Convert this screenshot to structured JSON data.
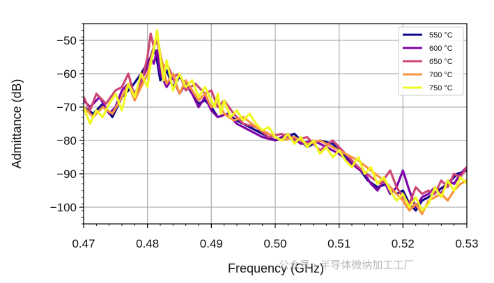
{
  "chart_data": {
    "type": "line",
    "xlabel": "Frequency (GHz)",
    "ylabel": "Admittance (dB)",
    "xlim": [
      0.47,
      0.53
    ],
    "ylim": [
      -105,
      -45
    ],
    "xticks": [
      0.47,
      0.48,
      0.49,
      0.5,
      0.51,
      0.52,
      0.53
    ],
    "xtick_labels": [
      "0.47",
      "0.48",
      "0.49",
      "0.50",
      "0.51",
      "0.52",
      "0.53"
    ],
    "yticks": [
      -100,
      -90,
      -80,
      -70,
      -60,
      -50
    ],
    "ytick_labels": [
      "−100",
      "−90",
      "−80",
      "−70",
      "−60",
      "−50"
    ],
    "grid": true,
    "legend_position": "top-right",
    "series": [
      {
        "name": "550 °C",
        "color": "#0d0887",
        "x": [
          0.47,
          0.4715,
          0.473,
          0.4745,
          0.476,
          0.4775,
          0.479,
          0.4805,
          0.481,
          0.4815,
          0.482,
          0.483,
          0.484,
          0.485,
          0.486,
          0.487,
          0.488,
          0.489,
          0.49,
          0.491,
          0.4925,
          0.494,
          0.496,
          0.498,
          0.5,
          0.5015,
          0.503,
          0.505,
          0.507,
          0.509,
          0.511,
          0.513,
          0.5145,
          0.516,
          0.5175,
          0.519,
          0.52,
          0.521,
          0.522,
          0.523,
          0.524,
          0.5255,
          0.527,
          0.5285,
          0.53
        ],
        "y": [
          -70,
          -72,
          -69,
          -73,
          -67,
          -64,
          -60,
          -55,
          -52,
          -56,
          -62,
          -59,
          -64,
          -61,
          -63,
          -66,
          -69,
          -68,
          -70,
          -73,
          -72,
          -74,
          -76,
          -78,
          -80,
          -79,
          -78,
          -82,
          -80,
          -81,
          -85,
          -88,
          -92,
          -94,
          -93,
          -96,
          -95,
          -99,
          -101,
          -98,
          -97,
          -95,
          -93,
          -90,
          -89
        ]
      },
      {
        "name": "600 °C",
        "color": "#7e03a8",
        "x": [
          0.47,
          0.471,
          0.4725,
          0.474,
          0.475,
          0.476,
          0.477,
          0.478,
          0.479,
          0.48,
          0.4805,
          0.481,
          0.4815,
          0.482,
          0.483,
          0.484,
          0.485,
          0.486,
          0.487,
          0.488,
          0.489,
          0.49,
          0.491,
          0.4925,
          0.494,
          0.496,
          0.498,
          0.5,
          0.502,
          0.504,
          0.506,
          0.508,
          0.51,
          0.512,
          0.514,
          0.515,
          0.516,
          0.517,
          0.518,
          0.519,
          0.52,
          0.521,
          0.522,
          0.523,
          0.524,
          0.525,
          0.526,
          0.527,
          0.528,
          0.529,
          0.53
        ],
        "y": [
          -68,
          -70,
          -67,
          -72,
          -70,
          -65,
          -63,
          -66,
          -62,
          -58,
          -55,
          -57,
          -53,
          -60,
          -64,
          -61,
          -66,
          -63,
          -66,
          -70,
          -67,
          -71,
          -73,
          -72,
          -75,
          -77,
          -79,
          -80,
          -78,
          -81,
          -80,
          -82,
          -84,
          -87,
          -90,
          -93,
          -95,
          -92,
          -96,
          -94,
          -89,
          -95,
          -100,
          -97,
          -96,
          -94,
          -96,
          -92,
          -93,
          -90,
          -88
        ]
      },
      {
        "name": "650 °C",
        "color": "#cc4778",
        "x": [
          0.47,
          0.471,
          0.472,
          0.4735,
          0.475,
          0.476,
          0.477,
          0.478,
          0.479,
          0.48,
          0.4805,
          0.481,
          0.4815,
          0.482,
          0.4825,
          0.483,
          0.484,
          0.485,
          0.486,
          0.4875,
          0.489,
          0.49,
          0.491,
          0.492,
          0.4935,
          0.495,
          0.497,
          0.499,
          0.501,
          0.503,
          0.505,
          0.507,
          0.509,
          0.511,
          0.513,
          0.515,
          0.5165,
          0.518,
          0.519,
          0.52,
          0.521,
          0.522,
          0.523,
          0.524,
          0.525,
          0.526,
          0.527,
          0.528,
          0.529,
          0.53
        ],
        "y": [
          -67,
          -71,
          -66,
          -69,
          -65,
          -64,
          -60,
          -67,
          -63,
          -55,
          -48,
          -52,
          -50,
          -55,
          -58,
          -57,
          -61,
          -60,
          -65,
          -63,
          -66,
          -65,
          -70,
          -68,
          -72,
          -75,
          -76,
          -79,
          -78,
          -80,
          -79,
          -83,
          -80,
          -84,
          -88,
          -91,
          -93,
          -89,
          -94,
          -97,
          -99,
          -94,
          -96,
          -95,
          -96,
          -92,
          -94,
          -90,
          -91,
          -88
        ]
      },
      {
        "name": "700 °C",
        "color": "#f89540",
        "x": [
          0.47,
          0.4715,
          0.473,
          0.4745,
          0.476,
          0.477,
          0.478,
          0.479,
          0.48,
          0.481,
          0.4815,
          0.482,
          0.4825,
          0.483,
          0.484,
          0.485,
          0.486,
          0.487,
          0.488,
          0.489,
          0.49,
          0.491,
          0.492,
          0.4935,
          0.495,
          0.497,
          0.499,
          0.501,
          0.503,
          0.505,
          0.507,
          0.509,
          0.511,
          0.513,
          0.515,
          0.517,
          0.518,
          0.519,
          0.52,
          0.521,
          0.522,
          0.523,
          0.524,
          0.525,
          0.526,
          0.527,
          0.528,
          0.529,
          0.53
        ],
        "y": [
          -70,
          -73,
          -70,
          -72,
          -67,
          -63,
          -68,
          -64,
          -60,
          -52,
          -48,
          -54,
          -58,
          -63,
          -60,
          -66,
          -62,
          -65,
          -68,
          -66,
          -70,
          -68,
          -72,
          -74,
          -73,
          -76,
          -78,
          -80,
          -79,
          -81,
          -80,
          -82,
          -84,
          -86,
          -89,
          -92,
          -94,
          -96,
          -98,
          -101,
          -99,
          -102,
          -98,
          -97,
          -96,
          -98,
          -95,
          -93,
          -92
        ]
      },
      {
        "name": "750 °C",
        "color": "#f0f921",
        "x": [
          0.47,
          0.471,
          0.472,
          0.473,
          0.474,
          0.475,
          0.476,
          0.477,
          0.478,
          0.479,
          0.48,
          0.4805,
          0.481,
          0.4815,
          0.482,
          0.4825,
          0.483,
          0.484,
          0.485,
          0.486,
          0.487,
          0.488,
          0.489,
          0.49,
          0.4905,
          0.491,
          0.4915,
          0.492,
          0.493,
          0.494,
          0.495,
          0.496,
          0.497,
          0.498,
          0.499,
          0.5,
          0.501,
          0.502,
          0.503,
          0.504,
          0.505,
          0.506,
          0.507,
          0.508,
          0.509,
          0.51,
          0.511,
          0.512,
          0.513,
          0.514,
          0.515,
          0.516,
          0.517,
          0.518,
          0.519,
          0.52,
          0.521,
          0.522,
          0.523,
          0.524,
          0.525,
          0.526,
          0.527,
          0.528,
          0.529,
          0.53
        ],
        "y": [
          -70,
          -75,
          -71,
          -73,
          -69,
          -66,
          -71,
          -63,
          -67,
          -60,
          -64,
          -57,
          -53,
          -47,
          -55,
          -62,
          -56,
          -65,
          -60,
          -64,
          -62,
          -67,
          -64,
          -68,
          -70,
          -66,
          -72,
          -68,
          -73,
          -71,
          -74,
          -72,
          -75,
          -77,
          -76,
          -79,
          -80,
          -78,
          -81,
          -79,
          -82,
          -80,
          -84,
          -82,
          -85,
          -83,
          -86,
          -88,
          -85,
          -90,
          -88,
          -93,
          -91,
          -95,
          -98,
          -96,
          -100,
          -97,
          -101,
          -99,
          -94,
          -97,
          -92,
          -95,
          -91,
          -93
        ]
      }
    ]
  },
  "watermark": "公众号 · 半导体微纳加工工厂"
}
